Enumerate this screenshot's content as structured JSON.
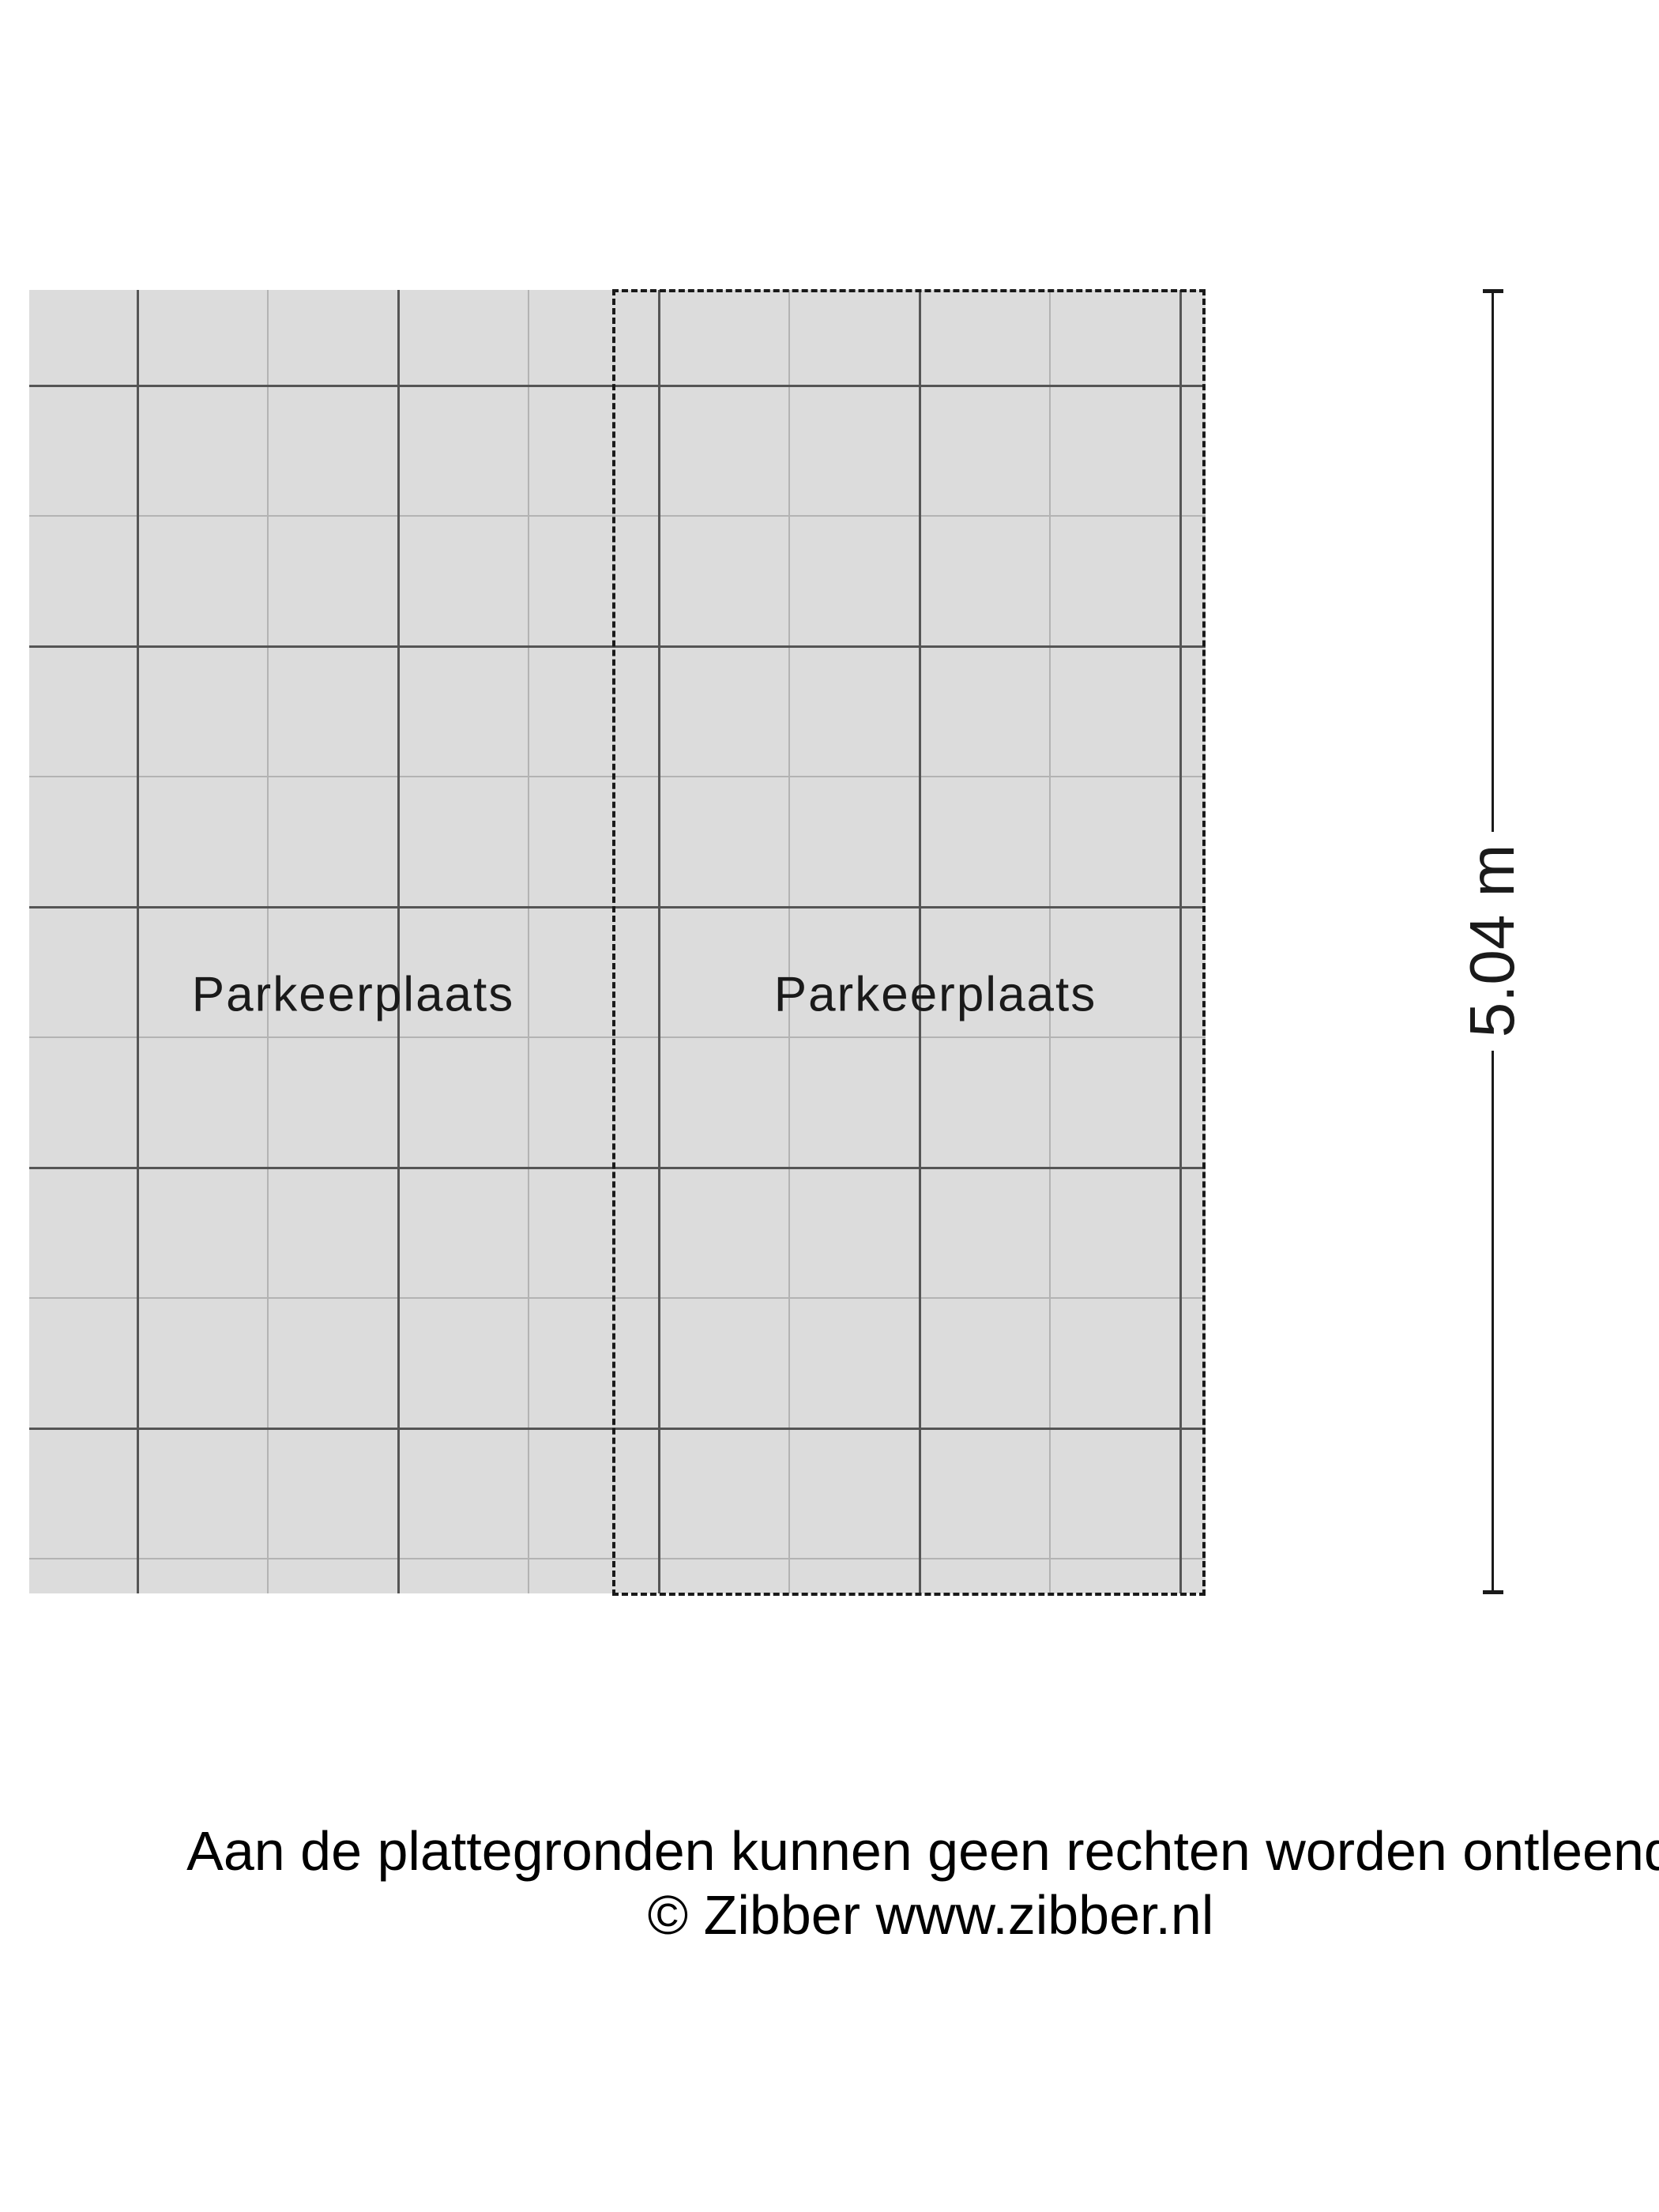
{
  "floor_plan": {
    "spots": [
      {
        "label": "Parkeerplaats"
      },
      {
        "label": "Parkeerplaats"
      }
    ],
    "dimension": {
      "label": "5.04 m"
    }
  },
  "footer": {
    "line1": "Aan de plattegronden kunnen geen rechten worden ontleend",
    "line2": "© Zibber www.zibber.nl"
  },
  "colors": {
    "floor_fill": "#dcdcdc",
    "grid_light": "#b3b3b3",
    "grid_dark": "#555555",
    "line_black": "#1a1a1a",
    "background": "#ffffff"
  }
}
